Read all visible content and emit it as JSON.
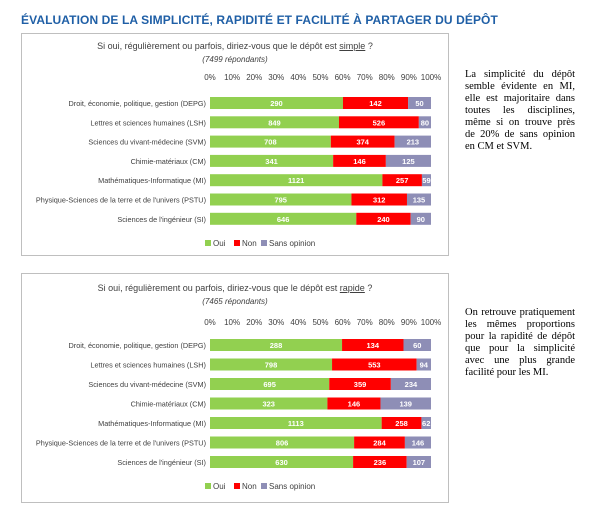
{
  "page": {
    "title": "ÉVALUATION DE LA SIMPLICITÉ, RAPIDITÉ ET FACILITÉ À PARTAGER DU DÉPÔT"
  },
  "colors": {
    "oui": "#92d050",
    "non": "#ff0000",
    "sans_opinion": "#8e8eb6"
  },
  "charts": [
    {
      "question_pre": "Si oui, régulièrement ou parfois, diriez-vous que le dépôt est ",
      "question_key": "simple",
      "question_post": " ?",
      "respondents": "(7499 répondants)",
      "commentary": "La simplicité du dépôt semble évidente en MI, elle est majoritaire dans toutes les disciplines, même si on trouve près de 20% de sans opinion en CM et SVM."
    },
    {
      "question_pre": "Si oui, régulièrement ou parfois, diriez-vous que le dépôt est ",
      "question_key": "rapide",
      "question_post": " ?",
      "respondents": "(7465 répondants)",
      "commentary": "On retrouve pratiquement les mêmes proportions pour la rapidité de dépôt que pour la simplicité avec une plus grande facilité pour les MI."
    }
  ],
  "chart_data": [
    {
      "type": "bar",
      "orientation": "horizontal",
      "stacked": "percent",
      "categories": [
        "Droit, économie, politique, gestion (DEPG)",
        "Lettres et sciences humaines (LSH)",
        "Sciences du vivant-médecine (SVM)",
        "Chimie-matériaux (CM)",
        "Mathématiques-Informatique (MI)",
        "Physique-Sciences de la terre et de l'univers (PSTU)",
        "Sciences de l'ingénieur (SI)"
      ],
      "series": [
        {
          "name": "Oui",
          "values": [
            290,
            849,
            708,
            341,
            1121,
            795,
            646
          ]
        },
        {
          "name": "Non",
          "values": [
            142,
            526,
            374,
            146,
            257,
            312,
            240
          ]
        },
        {
          "name": "Sans opinion",
          "values": [
            50,
            80,
            213,
            125,
            59,
            135,
            90
          ]
        }
      ],
      "xticks": [
        "0%",
        "10%",
        "20%",
        "30%",
        "40%",
        "50%",
        "60%",
        "70%",
        "80%",
        "90%",
        "100%"
      ],
      "xlim": [
        0,
        100
      ],
      "legend": "bottom",
      "grid": false
    },
    {
      "type": "bar",
      "orientation": "horizontal",
      "stacked": "percent",
      "categories": [
        "Droit, économie, politique, gestion (DEPG)",
        "Lettres et sciences humaines (LSH)",
        "Sciences du vivant-médecine (SVM)",
        "Chimie-matériaux (CM)",
        "Mathématiques-Informatique (MI)",
        "Physique-Sciences de la terre et de l'univers (PSTU)",
        "Sciences de l'ingénieur (SI)"
      ],
      "series": [
        {
          "name": "Oui",
          "values": [
            288,
            798,
            695,
            323,
            1113,
            806,
            630
          ]
        },
        {
          "name": "Non",
          "values": [
            134,
            553,
            359,
            146,
            258,
            284,
            236
          ]
        },
        {
          "name": "Sans opinion",
          "values": [
            60,
            94,
            234,
            139,
            62,
            146,
            107
          ]
        }
      ],
      "xticks": [
        "0%",
        "10%",
        "20%",
        "30%",
        "40%",
        "50%",
        "60%",
        "70%",
        "80%",
        "90%",
        "100%"
      ],
      "xlim": [
        0,
        100
      ],
      "legend": "bottom",
      "grid": false
    }
  ]
}
